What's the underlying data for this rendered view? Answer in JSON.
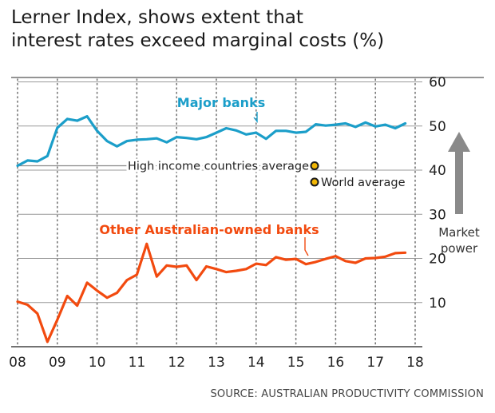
{
  "title_lines": [
    "Lerner Index, shows extent that",
    "interest rates exceed marginal costs (%)"
  ],
  "source": "SOURCE: AUSTRALIAN PRODUCTIVITY COMMISSION",
  "colors": {
    "major": "#1b9ec9",
    "other": "#f24a0f",
    "grid": "#9a9a9a",
    "text": "#222222",
    "arrow": "#8a8a8a",
    "marker": "#f2b705"
  },
  "arrow_label": [
    "Market",
    "power"
  ],
  "chart_data": {
    "type": "line",
    "title": "Lerner Index, shows extent that interest rates exceed marginal costs (%)",
    "xlabel": "",
    "ylabel": "",
    "x_ticks": [
      {
        "value": 2008,
        "label": "08"
      },
      {
        "value": 2009,
        "label": "09"
      },
      {
        "value": 2010,
        "label": "10"
      },
      {
        "value": 2011,
        "label": "11"
      },
      {
        "value": 2012,
        "label": "12"
      },
      {
        "value": 2013,
        "label": "13"
      },
      {
        "value": 2014,
        "label": "14"
      },
      {
        "value": 2015,
        "label": "15"
      },
      {
        "value": 2016,
        "label": "16"
      },
      {
        "value": 2017,
        "label": "17"
      },
      {
        "value": 2018,
        "label": "18"
      }
    ],
    "y_ticks": [
      10,
      20,
      30,
      40,
      50,
      60
    ],
    "xlim": [
      2008,
      2018
    ],
    "ylim": [
      0,
      61
    ],
    "grid": true,
    "series": [
      {
        "name": "Major banks",
        "x": [
          2008,
          2008.25,
          2008.5,
          2008.75,
          2009,
          2009.25,
          2009.5,
          2009.75,
          2010,
          2010.25,
          2010.5,
          2010.75,
          2011,
          2011.25,
          2011.5,
          2011.75,
          2012,
          2012.25,
          2012.5,
          2012.75,
          2013,
          2013.25,
          2013.5,
          2013.75,
          2014,
          2014.25,
          2014.5,
          2014.75,
          2015,
          2015.25,
          2015.5,
          2015.75,
          2016,
          2016.25,
          2016.5,
          2016.75,
          2017,
          2017.25,
          2017.5,
          2017.75
        ],
        "y": [
          41,
          42.2,
          42,
          43.2,
          49.6,
          51.6,
          51.2,
          52.2,
          48.9,
          46.6,
          45.4,
          46.6,
          46.9,
          47,
          47.2,
          46.3,
          47.5,
          47.3,
          47,
          47.5,
          48.5,
          49.5,
          49,
          48.1,
          48.5,
          47.1,
          48.9,
          48.9,
          48.5,
          48.7,
          50.4,
          50.1,
          50.3,
          50.6,
          49.8,
          50.8,
          49.9,
          50.3,
          49.5,
          50.6
        ]
      },
      {
        "name": "Other Australian-owned banks",
        "x": [
          2008,
          2008.25,
          2008.5,
          2008.75,
          2009,
          2009.25,
          2009.5,
          2009.75,
          2010,
          2010.25,
          2010.5,
          2010.75,
          2011,
          2011.25,
          2011.5,
          2011.75,
          2012,
          2012.25,
          2012.5,
          2012.75,
          2013,
          2013.25,
          2013.5,
          2013.75,
          2014,
          2014.25,
          2014.5,
          2014.75,
          2015,
          2015.25,
          2015.5,
          2015.75,
          2016,
          2016.25,
          2016.5,
          2016.75,
          2017,
          2017.25,
          2017.5,
          2017.75
        ],
        "y": [
          10.2,
          9.5,
          7.5,
          1.1,
          6.1,
          11.5,
          9.3,
          14.5,
          12.7,
          11.1,
          12.2,
          15.1,
          16.3,
          23.3,
          15.9,
          18.4,
          18.1,
          18.4,
          15.1,
          18.2,
          17.6,
          16.9,
          17.2,
          17.6,
          18.8,
          18.5,
          20.3,
          19.7,
          19.9,
          18.7,
          19.2,
          19.9,
          20.5,
          19.4,
          19,
          20,
          20.1,
          20.4,
          21.2,
          21.3
        ]
      }
    ],
    "reference_lines": [
      {
        "name": "High income countries average",
        "x_end": 2015.47,
        "y": 41
      }
    ],
    "points": [
      {
        "name": "World average",
        "x": 2015.47,
        "y": 37.3
      }
    ]
  }
}
